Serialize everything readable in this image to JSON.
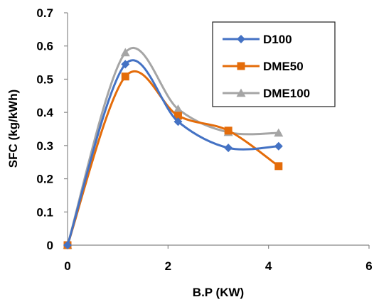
{
  "chart_data": {
    "type": "line",
    "title": "",
    "xlabel": "B.P (KW)",
    "ylabel": "SFC (kg/kWh)",
    "xlim": [
      0,
      6
    ],
    "ylim": [
      0,
      0.7
    ],
    "x_ticks": [
      "0",
      "2",
      "4",
      "6"
    ],
    "y_ticks": [
      "0",
      "0.1",
      "0.2",
      "0.3",
      "0.4",
      "0.5",
      "0.6",
      "0.7"
    ],
    "grid": false,
    "smooth": true,
    "legend_position": "top-right",
    "series": [
      {
        "name": "D100",
        "color": "#4472C4",
        "marker": "diamond",
        "x": [
          0,
          1.15,
          2.2,
          3.2,
          4.2
        ],
        "y": [
          0,
          0.545,
          0.372,
          0.293,
          0.298
        ]
      },
      {
        "name": "DME50",
        "color": "#E46C0A",
        "marker": "square",
        "x": [
          0,
          1.15,
          2.2,
          3.2,
          4.2
        ],
        "y": [
          0,
          0.508,
          0.39,
          0.345,
          0.238
        ]
      },
      {
        "name": "DME100",
        "color": "#A5A5A5",
        "marker": "triangle",
        "x": [
          0,
          1.15,
          2.2,
          3.2,
          4.2
        ],
        "y": [
          0,
          0.58,
          0.41,
          0.34,
          0.338
        ]
      }
    ]
  }
}
